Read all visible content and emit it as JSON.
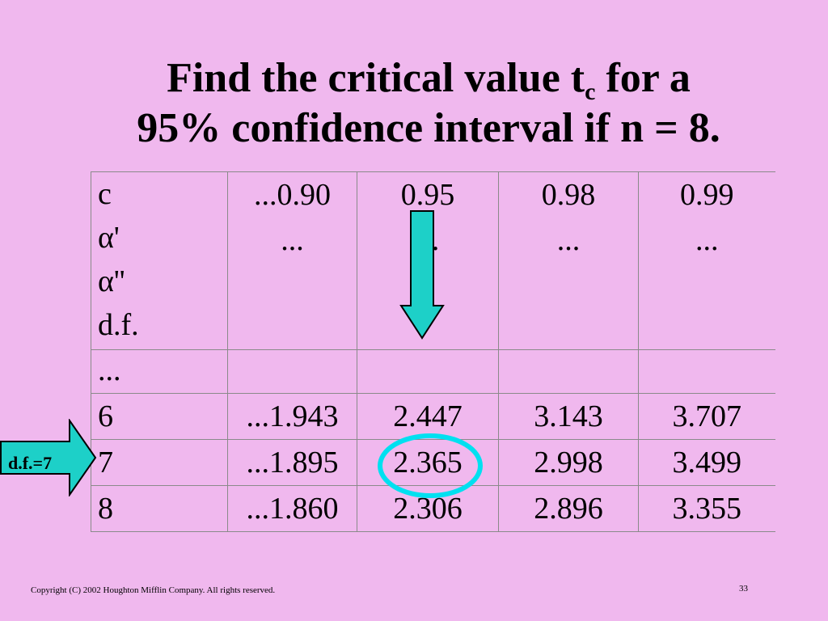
{
  "title": {
    "line1_pre": "Find the critical value t",
    "line1_sub": "c",
    "line1_post": " for a",
    "line2": "95% confidence interval if n = 8."
  },
  "table": {
    "header_labels": [
      "c",
      "α'",
      "α''",
      "d.f."
    ],
    "columns": [
      {
        "c": "...0.90",
        "dots": "..."
      },
      {
        "c": "0.95",
        "dots": "..."
      },
      {
        "c": "0.98",
        "dots": "..."
      },
      {
        "c": "0.99",
        "dots": "..."
      }
    ],
    "gap_row_label": "...",
    "rows": [
      {
        "df": "6",
        "values": [
          "...1.943",
          "2.447",
          "3.143",
          "3.707"
        ]
      },
      {
        "df": "7",
        "values": [
          "...1.895",
          "2.365",
          "2.998",
          "3.499"
        ]
      },
      {
        "df": "8",
        "values": [
          "...1.860",
          "2.306",
          "2.896",
          "3.355"
        ]
      }
    ]
  },
  "annotations": {
    "side_arrow_label": "d.f.=7",
    "arrow_color": "#1dd0c8",
    "circle_color": "#00e0f0",
    "icons": [
      "down-arrow-icon",
      "right-arrow-icon",
      "highlight-circle"
    ]
  },
  "footer": {
    "copyright": "Copyright (C) 2002 Houghton Mifflin Company.  All rights reserved.",
    "page_number": "33"
  },
  "colors": {
    "background": "#f0b8ee",
    "grid": "#8a8a8a"
  }
}
